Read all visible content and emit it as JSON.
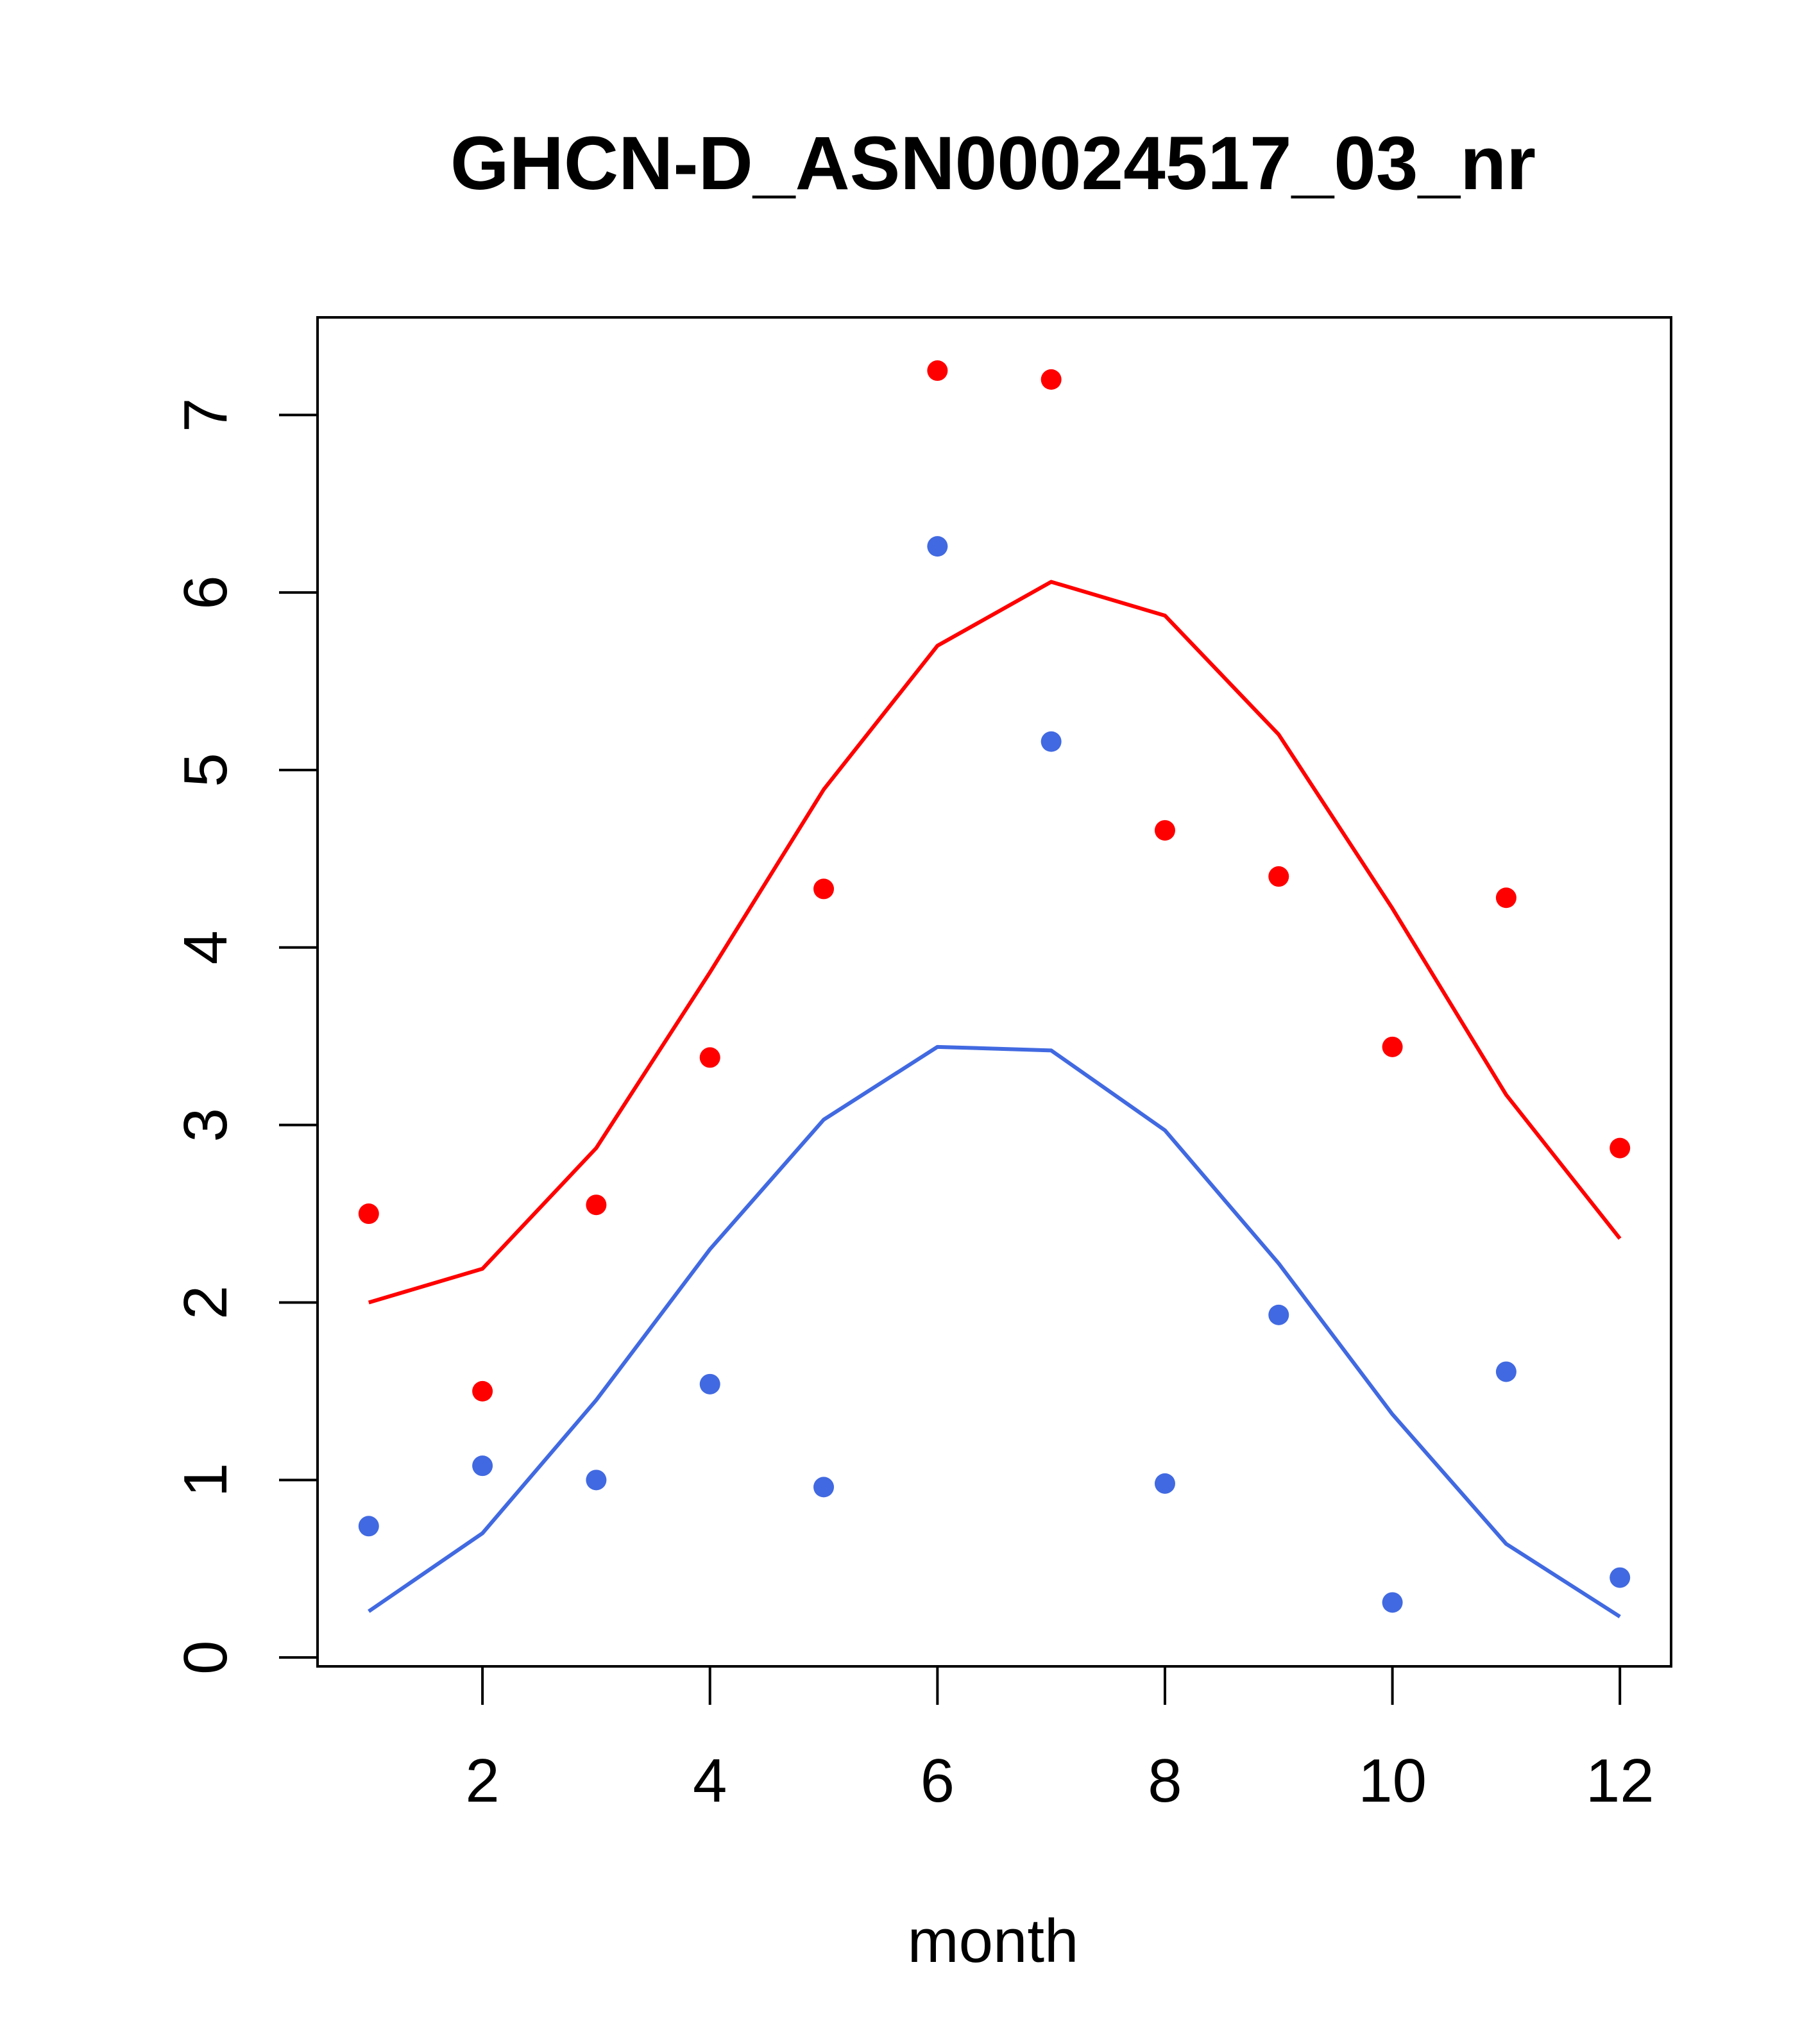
{
  "chart_data": {
    "type": "scatter",
    "title": "GHCN-D_ASN00024517_03_nr",
    "xlabel": "month",
    "ylabel": "",
    "xlim": [
      0.55,
      12.45
    ],
    "ylim": [
      -0.05,
      7.55
    ],
    "xticks": [
      2,
      4,
      6,
      8,
      10,
      12
    ],
    "yticks": [
      0,
      1,
      2,
      3,
      4,
      5,
      6,
      7
    ],
    "grid": false,
    "series": [
      {
        "kind": "points",
        "color": "#ff0000",
        "x": [
          1,
          2,
          3,
          4,
          5,
          6,
          7,
          8,
          9,
          10,
          11,
          12
        ],
        "y": [
          2.5,
          1.5,
          2.55,
          3.38,
          4.33,
          7.25,
          7.2,
          4.66,
          4.4,
          3.44,
          4.28,
          2.87
        ]
      },
      {
        "kind": "points",
        "color": "#4169e1",
        "x": [
          1,
          2,
          3,
          4,
          5,
          6,
          7,
          8,
          9,
          10,
          11,
          12
        ],
        "y": [
          0.74,
          1.08,
          1.0,
          1.54,
          0.96,
          6.26,
          5.16,
          0.98,
          1.93,
          0.31,
          1.61,
          0.45
        ]
      },
      {
        "kind": "line",
        "color": "#ff0000",
        "x": [
          1,
          2,
          3,
          4,
          5,
          6,
          7,
          8,
          9,
          10,
          11,
          12
        ],
        "y": [
          2.0,
          2.19,
          2.87,
          3.86,
          4.89,
          5.7,
          6.06,
          5.87,
          5.2,
          4.22,
          3.17,
          2.36
        ]
      },
      {
        "kind": "line",
        "color": "#4169e1",
        "x": [
          1,
          2,
          3,
          4,
          5,
          6,
          7,
          8,
          9,
          10,
          11,
          12
        ],
        "y": [
          0.26,
          0.7,
          1.45,
          2.3,
          3.03,
          3.44,
          3.42,
          2.97,
          2.22,
          1.37,
          0.64,
          0.23
        ]
      }
    ]
  }
}
